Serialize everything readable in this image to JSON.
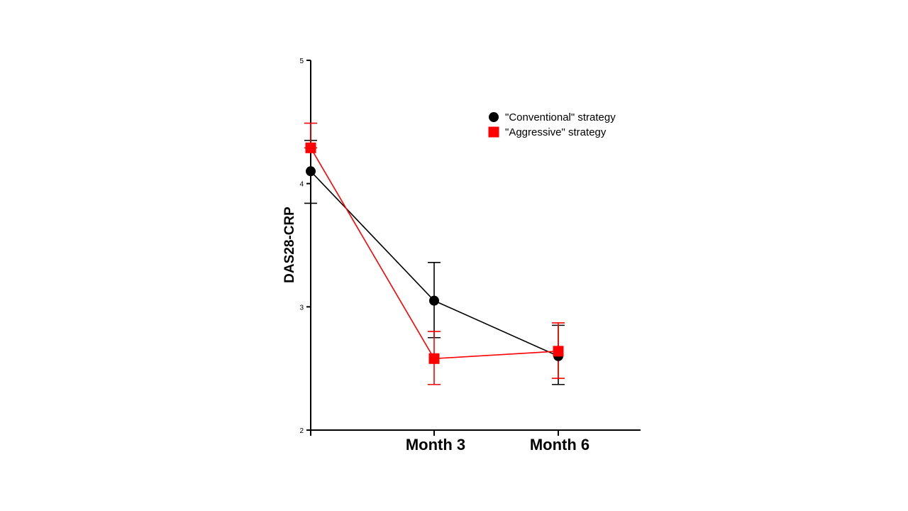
{
  "chart_data": {
    "type": "line",
    "title": "",
    "xlabel": "",
    "ylabel": "DAS28-CRP",
    "ylim": [
      2,
      5
    ],
    "yticks": [
      2,
      3,
      4,
      5
    ],
    "categories": [
      "",
      "Month 3",
      "Month 6"
    ],
    "legend_position": "top-right",
    "series": [
      {
        "name": "\"Conventional\" strategy",
        "color": "#000000",
        "marker": "circle",
        "values": [
          4.1,
          3.05,
          2.6
        ],
        "err_low": [
          3.84,
          2.75,
          2.37
        ],
        "err_high": [
          4.35,
          3.36,
          2.85
        ]
      },
      {
        "name": "\"Aggressive\" strategy",
        "color": "#ff0000",
        "marker": "square",
        "values": [
          4.29,
          2.58,
          2.64
        ],
        "err_low": [
          4.29,
          2.37,
          2.42
        ],
        "err_high": [
          4.49,
          2.8,
          2.87
        ]
      }
    ]
  }
}
